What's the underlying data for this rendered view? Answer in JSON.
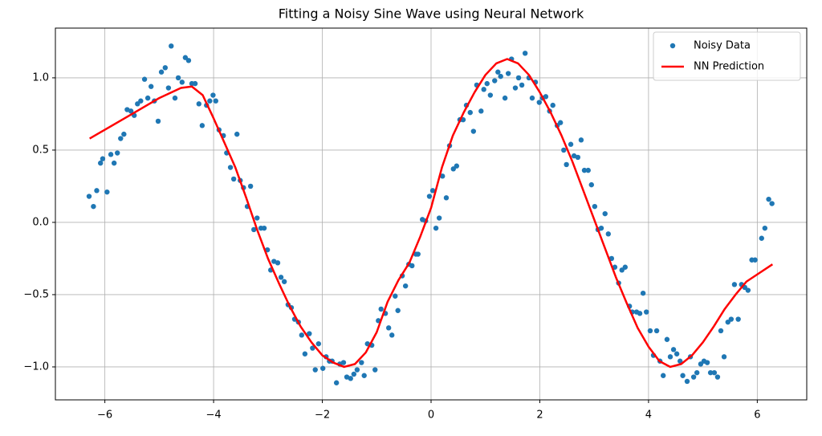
{
  "chart_data": {
    "type": "scatter",
    "title": "Fitting a Noisy Sine Wave using Neural Network",
    "xlim": [
      -6.91,
      6.91
    ],
    "ylim": [
      -1.228,
      1.344
    ],
    "xticks": [
      {
        "value": -6,
        "label": "−6"
      },
      {
        "value": -4,
        "label": "−4"
      },
      {
        "value": -2,
        "label": "−2"
      },
      0,
      2,
      4,
      6
    ],
    "yticks": [
      {
        "value": -1.0,
        "label": "−1.0"
      },
      {
        "value": -0.5,
        "label": "−0.5"
      },
      {
        "value": 0.0,
        "label": "0.0"
      },
      0.5,
      {
        "value": 1.0,
        "label": "1.0"
      }
    ],
    "grid": true,
    "legend": "upper right",
    "series": [
      {
        "name": "Noisy Data",
        "type": "scatter",
        "color": "#1f77b4",
        "x": [
          -6.29,
          -6.21,
          -6.15,
          -6.08,
          -6.04,
          -5.96,
          -5.89,
          -5.83,
          -5.77,
          -5.71,
          -5.65,
          -5.59,
          -5.52,
          -5.46,
          -5.4,
          -5.34,
          -5.27,
          -5.21,
          -5.15,
          -5.09,
          -5.02,
          -4.96,
          -4.89,
          -4.83,
          -4.78,
          -4.71,
          -4.65,
          -4.58,
          -4.52,
          -4.46,
          -4.4,
          -4.34,
          -4.27,
          -4.21,
          -4.13,
          -4.07,
          -4.01,
          -3.96,
          -3.9,
          -3.82,
          -3.76,
          -3.69,
          -3.63,
          -3.57,
          -3.51,
          -3.45,
          -3.38,
          -3.32,
          -3.26,
          -3.2,
          -3.13,
          -3.07,
          -3.01,
          -2.95,
          -2.89,
          -2.82,
          -2.76,
          -2.7,
          -2.63,
          -2.57,
          -2.51,
          -2.44,
          -2.38,
          -2.32,
          -2.24,
          -2.18,
          -2.13,
          -2.07,
          -1.99,
          -1.93,
          -1.87,
          -1.82,
          -1.74,
          -1.68,
          -1.61,
          -1.55,
          -1.48,
          -1.42,
          -1.36,
          -1.28,
          -1.23,
          -1.17,
          -1.09,
          -1.03,
          -0.97,
          -0.92,
          -0.84,
          -0.78,
          -0.72,
          -0.66,
          -0.61,
          -0.53,
          -0.47,
          -0.41,
          -0.35,
          -0.28,
          -0.24,
          -0.16,
          -0.1,
          -0.03,
          0.03,
          0.09,
          0.15,
          0.21,
          0.28,
          0.34,
          0.41,
          0.47,
          0.53,
          0.59,
          0.65,
          0.72,
          0.78,
          0.84,
          0.92,
          0.97,
          1.03,
          1.09,
          1.17,
          1.23,
          1.28,
          1.36,
          1.42,
          1.48,
          1.55,
          1.61,
          1.67,
          1.73,
          1.8,
          1.86,
          1.92,
          1.99,
          2.05,
          2.11,
          2.18,
          2.24,
          2.32,
          2.38,
          2.44,
          2.49,
          2.57,
          2.63,
          2.7,
          2.76,
          2.82,
          2.89,
          2.95,
          3.01,
          3.07,
          3.13,
          3.2,
          3.26,
          3.32,
          3.38,
          3.45,
          3.51,
          3.57,
          3.65,
          3.7,
          3.78,
          3.84,
          3.9,
          3.96,
          4.03,
          4.09,
          4.15,
          4.21,
          4.27,
          4.34,
          4.4,
          4.46,
          4.52,
          4.58,
          4.63,
          4.71,
          4.77,
          4.83,
          4.89,
          4.96,
          5.02,
          5.08,
          5.14,
          5.21,
          5.27,
          5.33,
          5.39,
          5.46,
          5.52,
          5.58,
          5.65,
          5.71,
          5.77,
          5.83,
          5.9,
          5.96,
          6.08,
          6.14,
          6.21,
          6.27
        ],
        "values": [
          0.18,
          0.11,
          0.22,
          0.41,
          0.44,
          0.21,
          0.47,
          0.41,
          0.48,
          0.58,
          0.61,
          0.78,
          0.77,
          0.74,
          0.82,
          0.84,
          0.99,
          0.86,
          0.94,
          0.84,
          0.7,
          1.04,
          1.07,
          0.93,
          1.22,
          0.86,
          1.0,
          0.97,
          1.14,
          1.12,
          0.96,
          0.96,
          0.82,
          0.67,
          0.81,
          0.84,
          0.88,
          0.84,
          0.64,
          0.6,
          0.48,
          0.38,
          0.3,
          0.61,
          0.29,
          0.24,
          0.11,
          0.25,
          -0.05,
          0.03,
          -0.04,
          -0.04,
          -0.19,
          -0.33,
          -0.27,
          -0.28,
          -0.38,
          -0.41,
          -0.57,
          -0.59,
          -0.67,
          -0.69,
          -0.78,
          -0.91,
          -0.77,
          -0.87,
          -1.02,
          -0.84,
          -1.01,
          -0.93,
          -0.96,
          -0.96,
          -1.11,
          -0.98,
          -0.97,
          -1.07,
          -1.08,
          -1.05,
          -1.02,
          -0.97,
          -1.06,
          -0.84,
          -0.85,
          -1.02,
          -0.68,
          -0.6,
          -0.63,
          -0.73,
          -0.78,
          -0.51,
          -0.61,
          -0.37,
          -0.44,
          -0.29,
          -0.3,
          -0.22,
          -0.22,
          0.02,
          0.01,
          0.18,
          0.22,
          -0.04,
          0.03,
          0.32,
          0.17,
          0.53,
          0.37,
          0.39,
          0.71,
          0.71,
          0.81,
          0.76,
          0.63,
          0.95,
          0.77,
          0.92,
          0.96,
          0.88,
          0.98,
          1.04,
          1.01,
          0.86,
          1.03,
          1.13,
          0.93,
          1.0,
          0.95,
          1.17,
          1.0,
          0.86,
          0.97,
          0.83,
          0.86,
          0.87,
          0.77,
          0.81,
          0.67,
          0.69,
          0.5,
          0.4,
          0.54,
          0.46,
          0.45,
          0.57,
          0.36,
          0.36,
          0.26,
          0.11,
          -0.05,
          -0.04,
          0.06,
          -0.08,
          -0.25,
          -0.31,
          -0.42,
          -0.33,
          -0.31,
          -0.58,
          -0.62,
          -0.62,
          -0.63,
          -0.49,
          -0.62,
          -0.75,
          -0.92,
          -0.75,
          -0.96,
          -1.06,
          -0.81,
          -0.93,
          -0.88,
          -0.91,
          -0.96,
          -1.06,
          -1.1,
          -0.93,
          -1.07,
          -1.04,
          -0.98,
          -0.96,
          -0.97,
          -1.04,
          -1.04,
          -1.07,
          -0.75,
          -0.93,
          -0.69,
          -0.67,
          -0.43,
          -0.67,
          -0.43,
          -0.45,
          -0.47,
          -0.26,
          -0.26,
          -0.11,
          -0.04,
          0.16,
          0.13
        ]
      },
      {
        "name": "NN Prediction",
        "type": "line",
        "color": "#ff0000",
        "x": [
          -6.28,
          -5.5,
          -5.0,
          -4.6,
          -4.4,
          -4.2,
          -4.0,
          -3.8,
          -3.6,
          -3.4,
          -3.2,
          -3.0,
          -2.8,
          -2.6,
          -2.4,
          -2.2,
          -2.0,
          -1.8,
          -1.6,
          -1.4,
          -1.2,
          -1.0,
          -0.8,
          -0.6,
          -0.4,
          -0.2,
          0.0,
          0.2,
          0.4,
          0.6,
          0.8,
          1.0,
          1.2,
          1.4,
          1.6,
          1.8,
          2.0,
          2.2,
          2.4,
          2.6,
          2.8,
          3.0,
          3.2,
          3.4,
          3.6,
          3.8,
          4.0,
          4.2,
          4.4,
          4.6,
          4.8,
          5.0,
          5.2,
          5.4,
          5.6,
          5.8,
          6.0,
          6.28
        ],
        "values": [
          0.58,
          0.75,
          0.86,
          0.93,
          0.94,
          0.88,
          0.72,
          0.55,
          0.38,
          0.17,
          -0.05,
          -0.25,
          -0.42,
          -0.58,
          -0.72,
          -0.83,
          -0.92,
          -0.97,
          -1.0,
          -0.98,
          -0.9,
          -0.76,
          -0.55,
          -0.4,
          -0.28,
          -0.1,
          0.1,
          0.38,
          0.6,
          0.76,
          0.9,
          1.02,
          1.1,
          1.13,
          1.1,
          1.02,
          0.9,
          0.76,
          0.6,
          0.42,
          0.22,
          0.02,
          -0.18,
          -0.38,
          -0.56,
          -0.73,
          -0.86,
          -0.96,
          -1.0,
          -0.98,
          -0.92,
          -0.83,
          -0.72,
          -0.6,
          -0.5,
          -0.41,
          -0.36,
          -0.29
        ]
      }
    ]
  }
}
